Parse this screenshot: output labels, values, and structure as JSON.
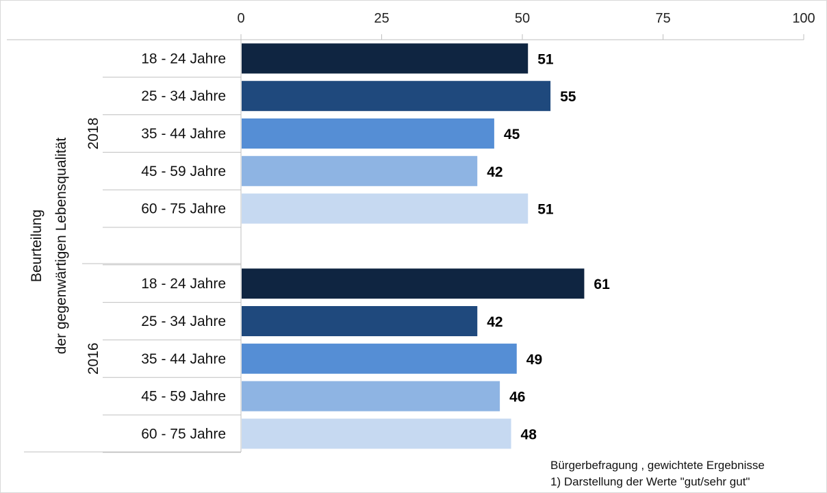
{
  "chart_data": {
    "type": "bar",
    "orientation": "horizontal",
    "xlim": [
      0,
      100
    ],
    "xticks": [
      "0",
      "25",
      "50",
      "75",
      "100"
    ],
    "ylabel_lines": [
      "Beurteilung",
      "der gegenwärtigen Lebensqualität"
    ],
    "groups": [
      {
        "name": "2018",
        "categories": [
          "18 - 24 Jahre",
          "25 - 34 Jahre",
          "35 - 44 Jahre",
          "45 - 59 Jahre",
          "60 - 75 Jahre"
        ],
        "values": [
          51,
          55,
          45,
          42,
          51
        ]
      },
      {
        "name": "2016",
        "categories": [
          "18 - 24 Jahre",
          "25 - 34 Jahre",
          "35 - 44 Jahre",
          "45 - 59 Jahre",
          "60 - 75 Jahre"
        ],
        "values": [
          61,
          42,
          49,
          46,
          48
        ]
      }
    ],
    "colors": [
      "#0f2541",
      "#1f497d",
      "#558ed5",
      "#8eb4e3",
      "#c6d9f1"
    ],
    "grid": false
  },
  "footnote": {
    "line1": "Bürgerbefragung , gewichtete Ergebnisse",
    "line2": "1) Darstellung der Werte \"gut/sehr gut\""
  }
}
